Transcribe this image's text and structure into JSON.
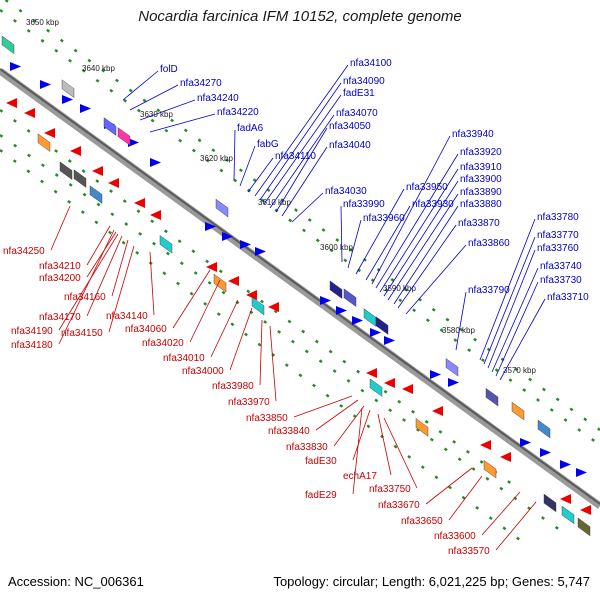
{
  "title": "Nocardia farcinica IFM 10152, complete genome",
  "footer": {
    "accession": "Accession: NC_006361",
    "summary": "Topology: circular; Length: 6,021,225 bp; Genes: 5,747"
  },
  "colors": {
    "forward": "#0000ee",
    "reverse": "#ee0000",
    "backbone": "#707070",
    "tick": "#2a8a2a",
    "label_blue": "#0000cc",
    "label_red": "#cc0000"
  },
  "scale_labels": [
    "3650 kbp",
    "3640 kbp",
    "3630 kbp",
    "3620 kbp",
    "3610 kbp",
    "3600 kbp",
    "3590 kbp",
    "3580 kbp",
    "3570 kbp"
  ],
  "forward_genes": [
    "folD",
    "nfa34270",
    "nfa34240",
    "nfa34220",
    "fadA6",
    "fabG",
    "nfa34110",
    "nfa34100",
    "nfa34090",
    "fadE31",
    "nfa34070",
    "nfa34050",
    "nfa34040",
    "nfa34030",
    "nfa33990",
    "nfa33960",
    "nfa33950",
    "nfa33930",
    "nfa33940",
    "nfa33920",
    "nfa33910",
    "nfa33900",
    "nfa33890",
    "nfa33880",
    "nfa33870",
    "nfa33860",
    "nfa33790",
    "nfa33780",
    "nfa33770",
    "nfa33760",
    "nfa33740",
    "nfa33730",
    "nfa33710"
  ],
  "reverse_genes": [
    "nfa34250",
    "nfa34210",
    "nfa34200",
    "nfa34160",
    "nfa34170",
    "nfa34190",
    "nfa34180",
    "nfa34150",
    "nfa34140",
    "nfa34060",
    "nfa34020",
    "nfa34010",
    "nfa34000",
    "nfa33980",
    "nfa33970",
    "nfa33850",
    "nfa33840",
    "nfa33830",
    "fadE30",
    "echA17",
    "fadE29",
    "nfa33750",
    "nfa33670",
    "nfa33650",
    "nfa33600",
    "nfa33570"
  ]
}
